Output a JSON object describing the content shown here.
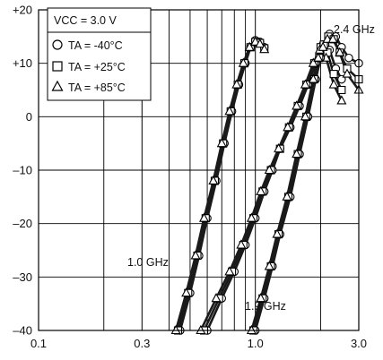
{
  "chart_data": {
    "type": "line",
    "title": "",
    "xlabel": "",
    "ylabel": "",
    "x_scale": "log",
    "xlim": [
      0.1,
      3.0
    ],
    "ylim": [
      -40,
      20
    ],
    "x_ticks": [
      0.1,
      0.3,
      1.0,
      3.0
    ],
    "x_tick_labels": [
      "0.1",
      "0.3",
      "1.0",
      "3.0"
    ],
    "y_ticks": [
      20,
      10,
      0,
      -10,
      -20,
      -30,
      -40
    ],
    "y_tick_labels": [
      "+20",
      "+10",
      "0",
      "–10",
      "–20",
      "–30",
      "–40"
    ],
    "grid": true,
    "legend": {
      "placement": "top-left",
      "header": "VCC = 3.0 V",
      "entries": [
        {
          "marker": "circle",
          "label": "TA = -40°C"
        },
        {
          "marker": "square",
          "label": "TA = +25°C"
        },
        {
          "marker": "triangle",
          "label": "TA = +85°C"
        }
      ]
    },
    "annotations": [
      "1.0 GHz",
      "1.9 GHz",
      "2.4 GHz"
    ],
    "series": [
      {
        "group": "1.0 GHz",
        "marker": "circle",
        "x": [
          0.45,
          0.5,
          0.55,
          0.6,
          0.66,
          0.72,
          0.78,
          0.84,
          0.9,
          0.95,
          1.0,
          1.05,
          1.1
        ],
        "y": [
          -40,
          -33,
          -26,
          -19,
          -12,
          -5,
          1,
          6,
          10,
          13,
          14.3,
          14,
          13
        ]
      },
      {
        "group": "1.0 GHz",
        "marker": "square",
        "x": [
          0.44,
          0.49,
          0.54,
          0.59,
          0.65,
          0.71,
          0.77,
          0.83,
          0.89,
          0.95,
          1.0,
          1.05,
          1.1
        ],
        "y": [
          -40,
          -33,
          -26,
          -19,
          -12,
          -5,
          1,
          6,
          10,
          13,
          14,
          13.8,
          12.8
        ]
      },
      {
        "group": "1.0 GHz",
        "marker": "triangle",
        "x": [
          0.43,
          0.48,
          0.53,
          0.58,
          0.64,
          0.7,
          0.76,
          0.82,
          0.88,
          0.94,
          1.0,
          1.05,
          1.1
        ],
        "y": [
          -40,
          -33,
          -26,
          -19,
          -12,
          -5,
          1,
          6,
          10,
          13,
          14,
          13.6,
          12.6
        ]
      },
      {
        "group": "1.9 GHz",
        "marker": "circle",
        "x": [
          0.6,
          0.7,
          0.8,
          0.9,
          1.0,
          1.1,
          1.2,
          1.3,
          1.45,
          1.6,
          1.75,
          1.9,
          2.05,
          2.2,
          2.35,
          2.5
        ],
        "y": [
          -40,
          -34,
          -29,
          -24,
          -19,
          -14,
          -10,
          -6,
          -2,
          2,
          6,
          10,
          13.5,
          12.5,
          9,
          7
        ]
      },
      {
        "group": "1.9 GHz",
        "marker": "square",
        "x": [
          0.58,
          0.68,
          0.78,
          0.88,
          0.98,
          1.08,
          1.18,
          1.3,
          1.43,
          1.57,
          1.72,
          1.87,
          2.0,
          2.15,
          2.3,
          2.5
        ],
        "y": [
          -40,
          -34,
          -29,
          -24,
          -19,
          -14,
          -10,
          -6,
          -2,
          2,
          6,
          10,
          13,
          12,
          8,
          5
        ]
      },
      {
        "group": "1.9 GHz",
        "marker": "triangle",
        "x": [
          0.56,
          0.66,
          0.76,
          0.86,
          0.96,
          1.06,
          1.16,
          1.28,
          1.41,
          1.55,
          1.7,
          1.85,
          1.98,
          2.12,
          2.3,
          2.5
        ],
        "y": [
          -40,
          -34,
          -29,
          -24,
          -19,
          -14,
          -10,
          -6,
          -2,
          2,
          6,
          10,
          12.5,
          11,
          6,
          3
        ]
      },
      {
        "group": "2.4 GHz",
        "marker": "circle",
        "x": [
          1.0,
          1.1,
          1.2,
          1.3,
          1.45,
          1.6,
          1.75,
          1.9,
          2.0,
          2.1,
          2.2,
          2.35,
          2.5,
          2.7,
          3.0
        ],
        "y": [
          -40,
          -34,
          -28,
          -22,
          -15,
          -7,
          0,
          7,
          11,
          13.5,
          15.5,
          15,
          13,
          11,
          10
        ]
      },
      {
        "group": "2.4 GHz",
        "marker": "square",
        "x": [
          0.98,
          1.08,
          1.18,
          1.28,
          1.42,
          1.57,
          1.72,
          1.87,
          1.97,
          2.07,
          2.17,
          2.3,
          2.45,
          2.65,
          3.0
        ],
        "y": [
          -40,
          -34,
          -28,
          -22,
          -15,
          -7,
          0,
          7,
          11,
          13.5,
          15,
          14.5,
          12,
          9,
          7
        ]
      },
      {
        "group": "2.4 GHz",
        "marker": "triangle",
        "x": [
          0.96,
          1.06,
          1.16,
          1.26,
          1.4,
          1.55,
          1.7,
          1.85,
          1.95,
          2.05,
          2.15,
          2.28,
          2.45,
          2.65,
          3.0
        ],
        "y": [
          -40,
          -34,
          -28,
          -22,
          -15,
          -7,
          0,
          7,
          11,
          13,
          14.5,
          14.5,
          12,
          8,
          5
        ]
      }
    ]
  }
}
